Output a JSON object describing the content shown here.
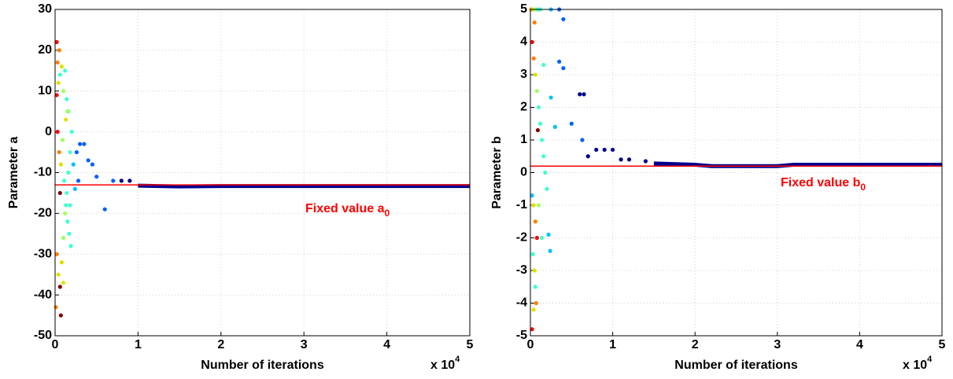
{
  "chart_data": [
    {
      "type": "scatter",
      "xlabel": "Number of iterations",
      "ylabel": "Parameter a",
      "multiplier": {
        "base": "x 10",
        "exponent": "4"
      },
      "annotation": {
        "text": "Fixed value a",
        "subscript": "0",
        "color": "#ff0000"
      },
      "xlim": [
        0,
        50000
      ],
      "xticks": [
        0,
        {
          "value": 10000,
          "label": "1"
        },
        {
          "value": 20000,
          "label": "2"
        },
        {
          "value": 30000,
          "label": "3"
        },
        {
          "value": 40000,
          "label": "4"
        },
        {
          "value": 50000,
          "label": "5"
        }
      ],
      "ylim": [
        -50,
        30
      ],
      "yticks": [
        -50,
        -40,
        -30,
        -20,
        -10,
        0,
        10,
        20,
        30
      ],
      "grid": true,
      "hline": {
        "value": -13,
        "color": "#ff0000"
      },
      "trace": {
        "x": [
          10000,
          15000,
          20000,
          25000,
          30000,
          35000,
          40000,
          45000,
          50000
        ],
        "y": [
          -13.2,
          -13.4,
          -13.3,
          -13.3,
          -13.3,
          -13.3,
          -13.3,
          -13.3,
          -13.3
        ],
        "color": "#000090"
      },
      "x": [
        200,
        300,
        500,
        400,
        600,
        800,
        1000,
        1200,
        1400,
        1600,
        300,
        500,
        700,
        900,
        1100,
        1300,
        1500,
        1700,
        1900,
        200,
        400,
        600,
        700,
        800,
        1000,
        1200,
        1400,
        1600,
        1800,
        2000,
        2200,
        2400,
        2600,
        2800,
        3000,
        3500,
        4000,
        4500,
        5000,
        6000,
        7000,
        8000,
        9000,
        100,
        1000,
        1500,
        1800,
        200,
        600,
        1300
      ],
      "y": [
        22,
        17,
        20,
        12,
        14,
        16,
        10,
        15,
        8,
        5,
        0,
        -5,
        -8,
        -2,
        -12,
        -18,
        -22,
        -25,
        -28,
        -30,
        -35,
        -38,
        -45,
        -32,
        -26,
        -20,
        -15,
        -10,
        -5,
        0,
        -8,
        -14,
        -5,
        -12,
        -3,
        -3,
        -7,
        -8,
        -11,
        -19,
        -12,
        -12,
        -12,
        -43,
        -37,
        5,
        -18,
        9,
        -15,
        3
      ],
      "colors": [
        "#ff0000",
        "#ff8000",
        "#ff8000",
        "#e0e000",
        "#40ffd0",
        "#e0e000",
        "#a0ff60",
        "#40ffd0",
        "#40ffd0",
        "#40ffd0",
        "#ff0000",
        "#ff8000",
        "#e0e000",
        "#a0ff60",
        "#40ffd0",
        "#40ffd0",
        "#40ffd0",
        "#40ffd0",
        "#40ffd0",
        "#ff8000",
        "#e0e000",
        "#800000",
        "#800000",
        "#e0e000",
        "#a0ff60",
        "#a0ff60",
        "#40ffd0",
        "#40ffd0",
        "#40ffd0",
        "#40ffd0",
        "#00c0ff",
        "#00c0ff",
        "#0060ff",
        "#0060ff",
        "#0060ff",
        "#0060ff",
        "#0060ff",
        "#0060ff",
        "#0060ff",
        "#0060ff",
        "#0060ff",
        "#000090",
        "#000090",
        "#ff8000",
        "#e0e000",
        "#a0ff60",
        "#40ffd0",
        "#ff0000",
        "#800000",
        "#e0e000"
      ]
    },
    {
      "type": "scatter",
      "xlabel": "Number of iterations",
      "ylabel": "Parameter b",
      "multiplier": {
        "base": "x 10",
        "exponent": "4"
      },
      "annotation": {
        "text": "Fixed value b",
        "subscript": "0",
        "color": "#ff0000"
      },
      "xlim": [
        0,
        50000
      ],
      "xticks": [
        0,
        {
          "value": 10000,
          "label": "1"
        },
        {
          "value": 20000,
          "label": "2"
        },
        {
          "value": 30000,
          "label": "3"
        },
        {
          "value": 40000,
          "label": "4"
        },
        {
          "value": 50000,
          "label": "5"
        }
      ],
      "ylim": [
        -5,
        5
      ],
      "yticks": [
        -5,
        -4,
        -3,
        -2,
        -1,
        0,
        1,
        2,
        3,
        4,
        5
      ],
      "grid": true,
      "hline": {
        "value": 0.2,
        "color": "#ff0000"
      },
      "trace": {
        "x": [
          15000,
          20000,
          22000,
          25000,
          30000,
          32000,
          35000,
          40000,
          45000,
          50000
        ],
        "y": [
          0.28,
          0.24,
          0.2,
          0.2,
          0.2,
          0.24,
          0.24,
          0.24,
          0.24,
          0.24
        ],
        "color": "#000090"
      },
      "x": [
        100,
        300,
        600,
        900,
        1200,
        2500,
        3500,
        4000,
        3500,
        4000,
        5000,
        6000,
        6500,
        6300,
        7000,
        8000,
        9000,
        10000,
        11000,
        12000,
        14000,
        3000,
        2500,
        200,
        400,
        600,
        800,
        1000,
        1200,
        1400,
        1600,
        1800,
        2000,
        200,
        400,
        600,
        800,
        300,
        500,
        700,
        200,
        400,
        600,
        1000,
        1400,
        2200,
        2400,
        900,
        500,
        1600
      ],
      "y": [
        5,
        5,
        5,
        5,
        5,
        5,
        5,
        4.7,
        3.4,
        3.2,
        1.5,
        2.4,
        2.4,
        1.0,
        0.5,
        0.7,
        0.7,
        0.7,
        0.4,
        0.4,
        0.35,
        1.4,
        2.3,
        4,
        3.5,
        3,
        2.5,
        2,
        1.5,
        1,
        0.5,
        0,
        -0.5,
        -0.7,
        -1,
        -1.5,
        -2,
        -2.5,
        -3,
        -4,
        -4.8,
        -4.2,
        -3.5,
        -1,
        -2,
        -1.9,
        -2.4,
        1.3,
        4.6,
        3.3
      ],
      "colors": [
        "#ff8000",
        "#e0e000",
        "#a0ff60",
        "#40ffd0",
        "#40ffd0",
        "#00c0ff",
        "#0060ff",
        "#0060ff",
        "#0060ff",
        "#0060ff",
        "#0060ff",
        "#000090",
        "#000090",
        "#0060ff",
        "#000090",
        "#000090",
        "#000090",
        "#000090",
        "#000090",
        "#000090",
        "#000090",
        "#00c0ff",
        "#00c0ff",
        "#ff0000",
        "#ff8000",
        "#e0e000",
        "#a0ff60",
        "#40ffd0",
        "#40ffd0",
        "#40ffd0",
        "#40ffd0",
        "#40ffd0",
        "#40ffd0",
        "#00c0ff",
        "#e0e000",
        "#ff8000",
        "#ff0000",
        "#40ffd0",
        "#e0e000",
        "#ff8000",
        "#ff0000",
        "#e0e000",
        "#40ffd0",
        "#a0ff60",
        "#40ffd0",
        "#00c0ff",
        "#00c0ff",
        "#800000",
        "#ff8000",
        "#40ffd0"
      ]
    }
  ]
}
